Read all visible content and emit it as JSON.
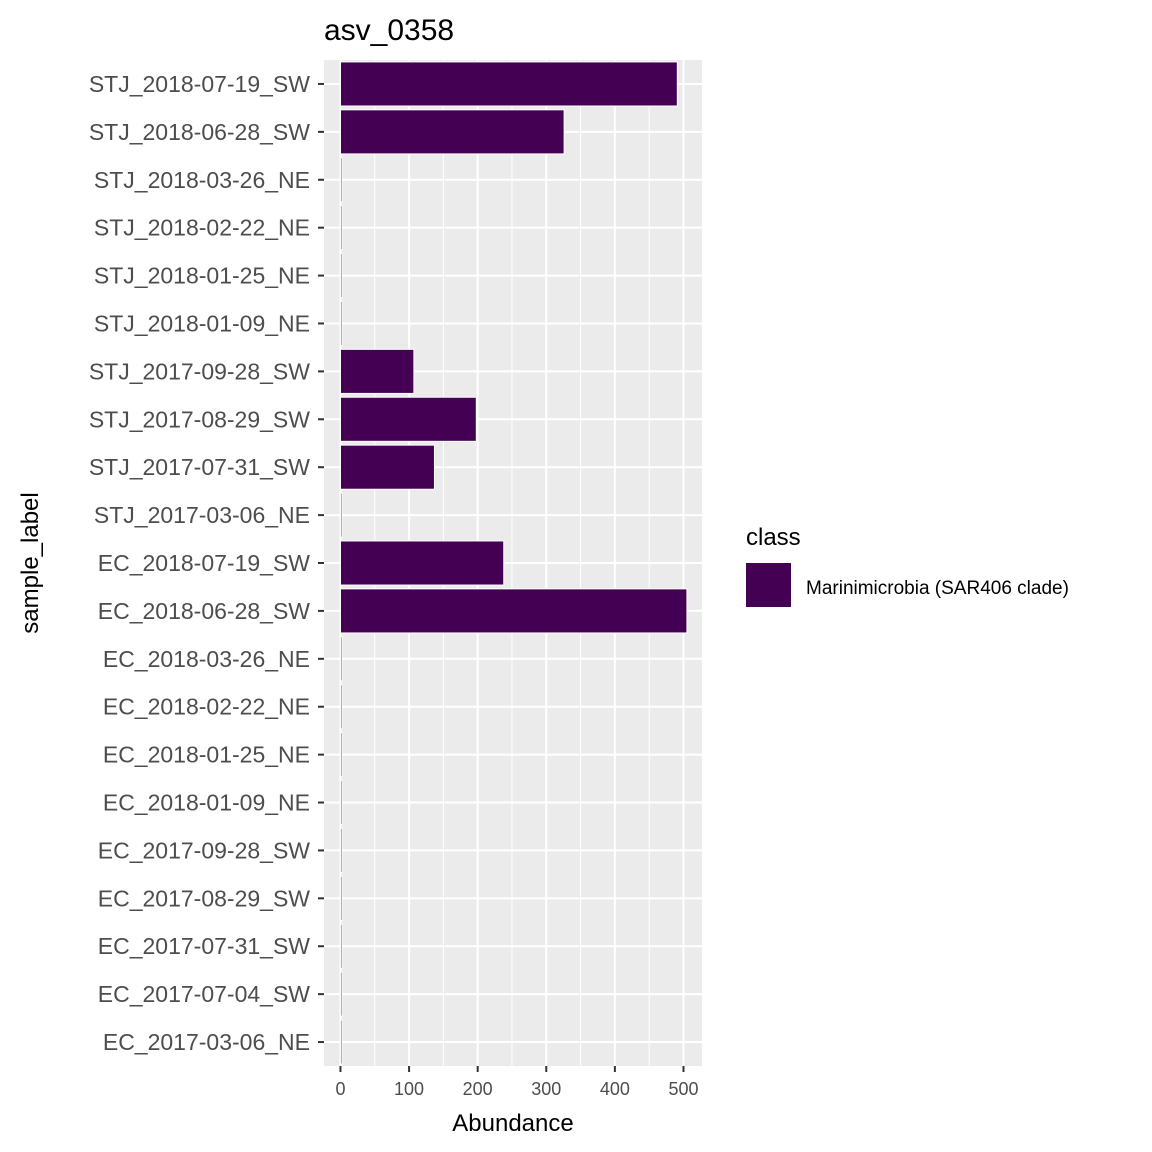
{
  "chart_data": {
    "type": "bar",
    "orientation": "horizontal",
    "title": "asv_0358",
    "xlabel": "Abundance",
    "ylabel": "sample_label",
    "xlim": [
      -24,
      527
    ],
    "xticks": [
      0,
      100,
      200,
      300,
      400,
      500
    ],
    "grid": true,
    "categories": [
      "STJ_2018-07-19_SW",
      "STJ_2018-06-28_SW",
      "STJ_2018-03-26_NE",
      "STJ_2018-02-22_NE",
      "STJ_2018-01-25_NE",
      "STJ_2018-01-09_NE",
      "STJ_2017-09-28_SW",
      "STJ_2017-08-29_SW",
      "STJ_2017-07-31_SW",
      "STJ_2017-03-06_NE",
      "EC_2018-07-19_SW",
      "EC_2018-06-28_SW",
      "EC_2018-03-26_NE",
      "EC_2018-02-22_NE",
      "EC_2018-01-25_NE",
      "EC_2018-01-09_NE",
      "EC_2017-09-28_SW",
      "EC_2017-08-29_SW",
      "EC_2017-07-31_SW",
      "EC_2017-07-04_SW",
      "EC_2017-03-06_NE"
    ],
    "series": [
      {
        "name": "Marinimicrobia (SAR406 clade)",
        "color": "#440154",
        "values": [
          491,
          326,
          2,
          2,
          2,
          2,
          107,
          198,
          137,
          2,
          238,
          505,
          2,
          2,
          2,
          2,
          2,
          2,
          2,
          2,
          2
        ]
      }
    ],
    "legend": {
      "title": "class",
      "position": "right"
    }
  }
}
